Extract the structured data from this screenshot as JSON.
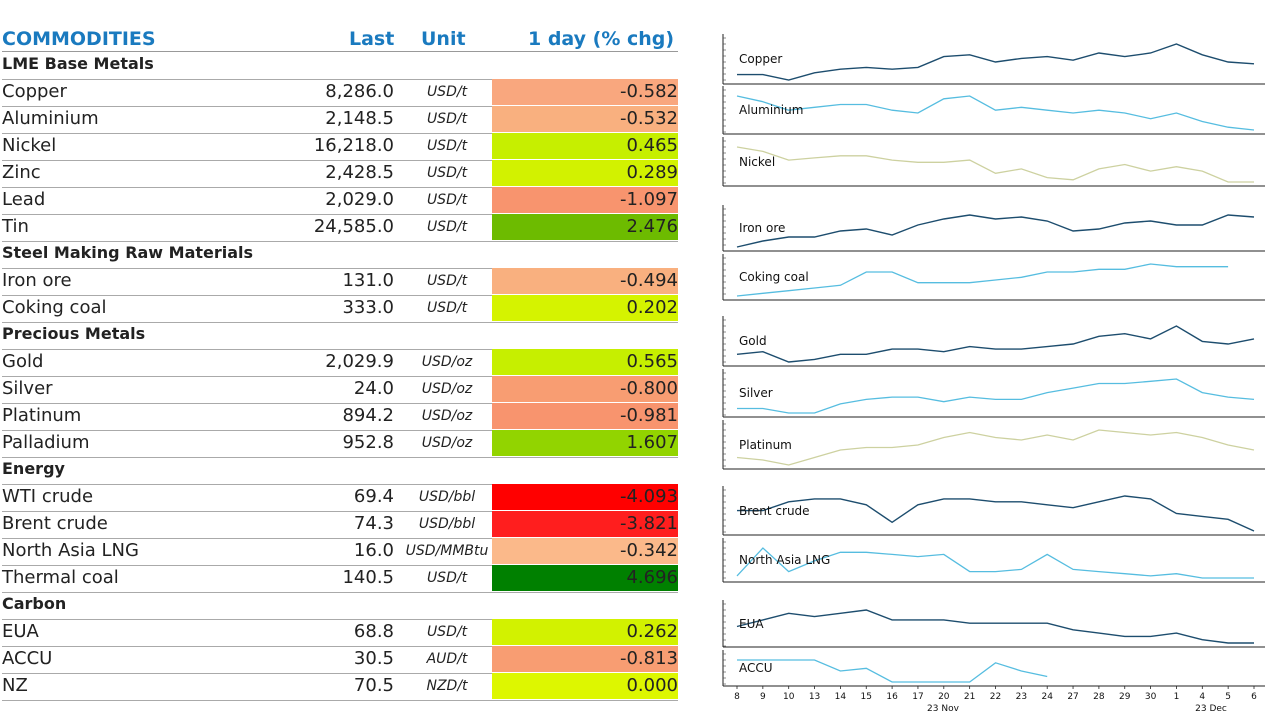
{
  "header": {
    "title": "COMMODITIES",
    "last": "Last",
    "unit": "Unit",
    "chg": "1 day (% chg)"
  },
  "rows": [
    {
      "type": "section",
      "name": "LME Base Metals"
    },
    {
      "type": "item",
      "name": "Copper",
      "last": "8,286.0",
      "unit": "USD/t",
      "chg": "-0.582",
      "color": "#f9a77e"
    },
    {
      "type": "item",
      "name": "Aluminium",
      "last": "2,148.5",
      "unit": "USD/t",
      "chg": "-0.532",
      "color": "#f9b07f"
    },
    {
      "type": "item",
      "name": "Nickel",
      "last": "16,218.0",
      "unit": "USD/t",
      "chg": "0.465",
      "color": "#c6ef00"
    },
    {
      "type": "item",
      "name": "Zinc",
      "last": "2,428.5",
      "unit": "USD/t",
      "chg": "0.289",
      "color": "#d2f200"
    },
    {
      "type": "item",
      "name": "Lead",
      "last": "2,029.0",
      "unit": "USD/t",
      "chg": "-1.097",
      "color": "#f8946e"
    },
    {
      "type": "item",
      "name": "Tin",
      "last": "24,585.0",
      "unit": "USD/t",
      "chg": "2.476",
      "color": "#6dbb00"
    },
    {
      "type": "section",
      "name": "Steel Making Raw Materials"
    },
    {
      "type": "item",
      "name": "Iron ore",
      "last": "131.0",
      "unit": "USD/t",
      "chg": "-0.494",
      "color": "#f9b07f"
    },
    {
      "type": "item",
      "name": "Coking coal",
      "last": "333.0",
      "unit": "USD/t",
      "chg": "0.202",
      "color": "#d5f300"
    },
    {
      "type": "section",
      "name": "Precious Metals"
    },
    {
      "type": "item",
      "name": "Gold",
      "last": "2,029.9",
      "unit": "USD/oz",
      "chg": "0.565",
      "color": "#c6ef00"
    },
    {
      "type": "item",
      "name": "Silver",
      "last": "24.0",
      "unit": "USD/oz",
      "chg": "-0.800",
      "color": "#f89d72"
    },
    {
      "type": "item",
      "name": "Platinum",
      "last": "894.2",
      "unit": "USD/oz",
      "chg": "-0.981",
      "color": "#f8946e"
    },
    {
      "type": "item",
      "name": "Palladium",
      "last": "952.8",
      "unit": "USD/oz",
      "chg": "1.607",
      "color": "#92d400"
    },
    {
      "type": "section",
      "name": "Energy"
    },
    {
      "type": "item",
      "name": "WTI crude",
      "last": "69.4",
      "unit": "USD/bbl",
      "chg": "-4.093",
      "color": "#ff0000"
    },
    {
      "type": "item",
      "name": "Brent crude",
      "last": "74.3",
      "unit": "USD/bbl",
      "chg": "-3.821",
      "color": "#ff1e1e"
    },
    {
      "type": "item",
      "name": "North Asia LNG",
      "last": "16.0",
      "unit": "USD/MMBtu",
      "chg": "-0.342",
      "color": "#fbb98a"
    },
    {
      "type": "item",
      "name": "Thermal coal",
      "last": "140.5",
      "unit": "USD/t",
      "chg": "4.696",
      "color": "#008000"
    },
    {
      "type": "section",
      "name": "Carbon"
    },
    {
      "type": "item",
      "name": "EUA",
      "last": "68.8",
      "unit": "USD/t",
      "chg": "0.262",
      "color": "#d2f200"
    },
    {
      "type": "item",
      "name": "ACCU",
      "last": "30.5",
      "unit": "AUD/t",
      "chg": "-0.813",
      "color": "#f89d72"
    },
    {
      "type": "item",
      "name": "NZ",
      "last": "70.5",
      "unit": "NZD/t",
      "chg": "0.000",
      "color": "#ddf700"
    }
  ],
  "chart_data": {
    "type": "line",
    "x": [
      "8",
      "9",
      "10",
      "13",
      "14",
      "15",
      "16",
      "17",
      "20",
      "21",
      "22",
      "23",
      "24",
      "27",
      "28",
      "29",
      "30",
      "1",
      "4",
      "5",
      "6"
    ],
    "x_groups": [
      "23 Nov",
      "23 Dec"
    ],
    "colors": {
      "dark": "#1d4d6e",
      "light": "#56bde0",
      "olive": "#cdd1a0"
    },
    "series": [
      {
        "name": "Copper",
        "style": "dark",
        "values": [
          3,
          3,
          0,
          4,
          6,
          7,
          6,
          7,
          13,
          14,
          10,
          12,
          13,
          11,
          15,
          13,
          15,
          20,
          14,
          10,
          9
        ]
      },
      {
        "name": "Aluminium",
        "style": "light",
        "values": [
          12,
          10,
          7,
          8,
          9,
          9,
          7,
          6,
          11,
          12,
          7,
          8,
          7,
          6,
          7,
          6,
          4,
          6,
          3,
          1,
          0
        ]
      },
      {
        "name": "Nickel",
        "style": "olive",
        "values": [
          18,
          16,
          12,
          13,
          14,
          14,
          12,
          11,
          11,
          12,
          6,
          8,
          4,
          3,
          8,
          10,
          7,
          9,
          7,
          2,
          2
        ]
      },
      {
        "name": "Iron ore",
        "style": "dark",
        "values": [
          0,
          3,
          5,
          5,
          8,
          9,
          6,
          11,
          14,
          16,
          14,
          15,
          13,
          8,
          9,
          12,
          13,
          11,
          11,
          16,
          15
        ]
      },
      {
        "name": "Coking coal",
        "style": "light",
        "values": [
          0,
          1,
          2,
          3,
          4,
          9,
          9,
          5,
          5,
          5,
          6,
          7,
          9,
          9,
          10,
          10,
          12,
          11,
          11,
          11,
          null
        ]
      },
      {
        "name": "Gold",
        "style": "dark",
        "values": [
          3,
          4,
          0,
          1,
          3,
          3,
          5,
          5,
          4,
          6,
          5,
          5,
          6,
          7,
          10,
          11,
          9,
          14,
          8,
          7,
          9
        ]
      },
      {
        "name": "Silver",
        "style": "light",
        "values": [
          2,
          2,
          0,
          0,
          4,
          6,
          7,
          7,
          5,
          7,
          6,
          6,
          9,
          11,
          13,
          13,
          14,
          15,
          9,
          7,
          6
        ]
      },
      {
        "name": "Platinum",
        "style": "olive",
        "values": [
          3,
          2,
          0,
          3,
          6,
          7,
          7,
          8,
          11,
          13,
          11,
          10,
          12,
          10,
          14,
          13,
          12,
          13,
          11,
          8,
          6
        ]
      },
      {
        "name": "Brent crude",
        "style": "dark",
        "values": [
          8,
          8,
          11,
          12,
          12,
          10,
          4,
          10,
          12,
          12,
          11,
          11,
          10,
          9,
          11,
          13,
          12,
          7,
          6,
          5,
          1
        ]
      },
      {
        "name": "North Asia LNG",
        "style": "light",
        "values": [
          1,
          14,
          3,
          8,
          12,
          12,
          11,
          10,
          11,
          3,
          3,
          4,
          11,
          4,
          3,
          2,
          1,
          2,
          0,
          0,
          0
        ]
      },
      {
        "name": "EUA",
        "style": "dark",
        "values": [
          7,
          9,
          11,
          10,
          11,
          12,
          9,
          9,
          9,
          8,
          8,
          8,
          8,
          6,
          5,
          4,
          4,
          5,
          3,
          2,
          2
        ]
      },
      {
        "name": "ACCU",
        "style": "light",
        "values": [
          10,
          10,
          10,
          10,
          6,
          7,
          2,
          2,
          2,
          2,
          9,
          6,
          4,
          null,
          null,
          null,
          null,
          null,
          null,
          null,
          null
        ]
      }
    ]
  }
}
